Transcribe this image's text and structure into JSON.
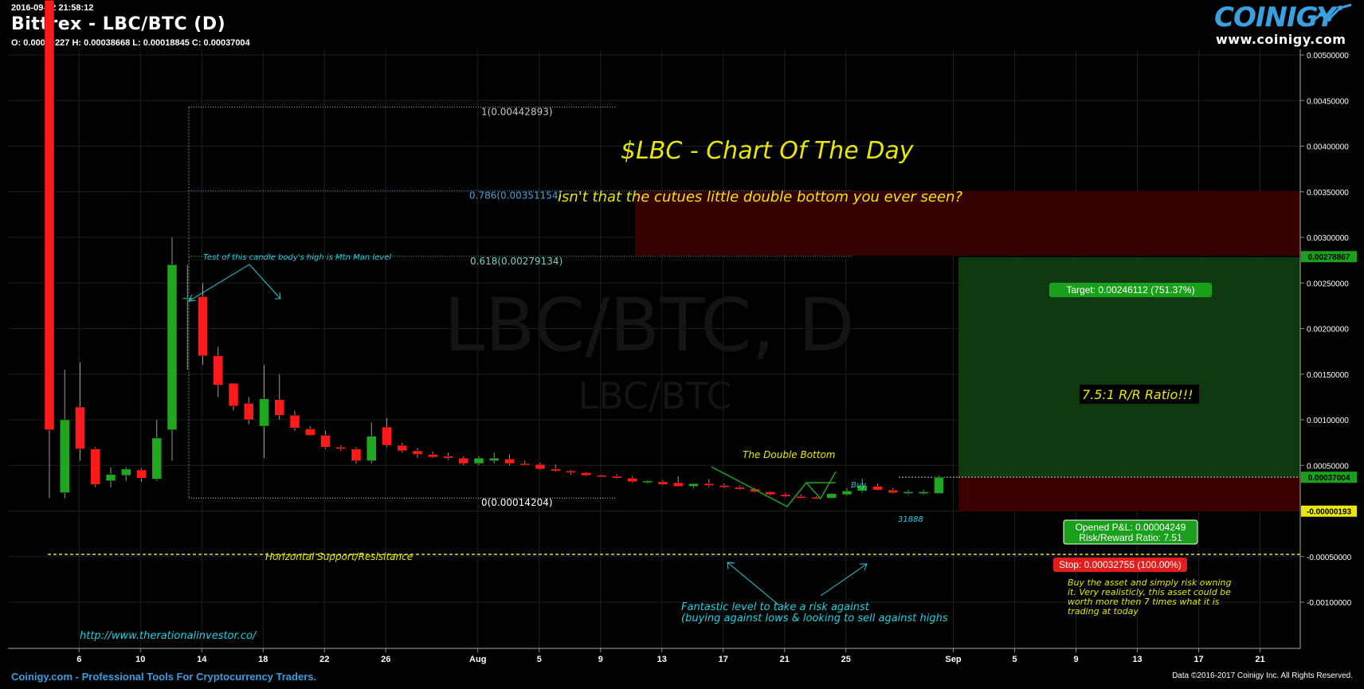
{
  "header": {
    "timestamp": "2016-09-02 21:58:12",
    "title": "Bittrex - LBC/BTC (D)",
    "ohlc": "O: 0.00019227 H: 0.00038668 L: 0.00018845 C: 0.00037004"
  },
  "logo": {
    "name": "COINIGY",
    "url": "www.coinigy.com"
  },
  "footer": {
    "left": "Coinigy.com - Professional Tools For Cryptocurrency Traders.",
    "right": "Data ©2016-2017 Coinigy Inc. All Rights Reserved."
  },
  "watermark": {
    "big": "LBC/BTC, D",
    "small": "LBC/BTC"
  },
  "annotations": {
    "headline": "$LBC - Chart Of The Day",
    "subheadline": "isn't that the cutues little double bottom you ever seen?",
    "mtn_man": "Test of this candle body's high is Mtn Man level",
    "horizontal": "Horizontal Support/Resisitance",
    "double_bottom": "The Double Bottom",
    "buy": "Buy",
    "count": "31888",
    "rr_ratio": "7.5:1 R/R Ratio!!!",
    "fantastic_1": "Fantastic level to take a risk against",
    "fantastic_2": "(buying against lows & looking to sell against highs",
    "url": "http://www.therationalinvestor.co/",
    "note_1": "Buy the asset and simply risk owning",
    "note_2": "it. Very realisticly, this asset could be",
    "note_3": "worth more then 7 times what it is",
    "note_4": "trading at today",
    "target": "Target: 0.00246112 (751.37%)",
    "stop": "Stop: 0.00032755 (100.00%)",
    "pnl": "Opened P&L: 0.00004249",
    "rr_label": "Risk/Reward Ratio: 7.51"
  },
  "fib_levels": [
    {
      "label": "1(0.00442893)",
      "price": 0.00442893,
      "color": "#c8c8c8"
    },
    {
      "label": "0.786(0.00351154)",
      "price": 0.00351154,
      "color": "#4aa0d8"
    },
    {
      "label": "0.618(0.00279134)",
      "price": 0.00279134,
      "color": "#7ad0c0"
    },
    {
      "label": "0(0.00014204)",
      "price": 0.00014204,
      "color": "#ffffff"
    }
  ],
  "price_labels": [
    {
      "text": "0.00278867",
      "price": 0.00278867,
      "color": "#1aa01a"
    },
    {
      "text": "0.00037004",
      "price": 0.00037004,
      "color": "#1aa01a"
    },
    {
      "text": "-0.00000193",
      "price": -1.93e-06,
      "color": "#e8e800"
    }
  ],
  "colors": {
    "up": "#1fa71f",
    "down": "#ff1a1a",
    "background": "#000000",
    "annotation": "#e8e800",
    "cyan": "#20d0e0"
  },
  "chart_data": {
    "type": "candlestick",
    "title": "Bittrex - LBC/BTC (D)",
    "y_axis": {
      "ylim": [
        -0.001,
        0.0056
      ],
      "ticks": [
        "0.00500000",
        "0.00450000",
        "0.00400000",
        "0.00350000",
        "0.00300000",
        "0.00250000",
        "0.00200000",
        "0.00150000",
        "0.00100000",
        "0.00050000",
        "-0.00050000",
        "-0.00100000"
      ]
    },
    "x_axis": {
      "labels": [
        "6",
        "10",
        "14",
        "18",
        "22",
        "26",
        "Aug",
        "5",
        "9",
        "13",
        "17",
        "21",
        "25",
        "Sep",
        "5",
        "9",
        "13",
        "17",
        "21"
      ],
      "label_days": [
        1,
        5,
        9,
        13,
        17,
        21,
        27,
        31,
        35,
        39,
        43,
        47,
        51,
        58,
        62,
        66,
        70,
        74,
        78
      ]
    },
    "candles": [
      {
        "d": 0,
        "o": 0.0056,
        "h": 0.0056,
        "l": 0.00014,
        "c": 0.00089
      },
      {
        "d": 1,
        "o": 0.0002,
        "h": 0.00155,
        "l": 0.00014,
        "c": 0.001
      },
      {
        "d": 2,
        "o": 0.00114,
        "h": 0.00163,
        "l": 0.00055,
        "c": 0.00068
      },
      {
        "d": 3,
        "o": 0.00068,
        "h": 0.0007,
        "l": 0.00026,
        "c": 0.00029
      },
      {
        "d": 4,
        "o": 0.00033,
        "h": 0.00048,
        "l": 0.00026,
        "c": 0.0004
      },
      {
        "d": 5,
        "o": 0.00039,
        "h": 0.00048,
        "l": 0.00033,
        "c": 0.00046
      },
      {
        "d": 6,
        "o": 0.00045,
        "h": 0.00047,
        "l": 0.00032,
        "c": 0.00036
      },
      {
        "d": 7,
        "o": 0.00035,
        "h": 0.001,
        "l": 0.00033,
        "c": 0.0008
      },
      {
        "d": 8,
        "o": 0.00089,
        "h": 0.003,
        "l": 0.00055,
        "c": 0.0027
      },
      {
        "d": 9,
        "o": 0.00234,
        "h": 0.0027,
        "l": 0.00155,
        "c": 0.00234
      },
      {
        "d": 10,
        "o": 0.00235,
        "h": 0.0025,
        "l": 0.0016,
        "c": 0.0017
      },
      {
        "d": 11,
        "o": 0.0017,
        "h": 0.0018,
        "l": 0.00125,
        "c": 0.00138
      },
      {
        "d": 12,
        "o": 0.0014,
        "h": 0.0014,
        "l": 0.0011,
        "c": 0.00115
      },
      {
        "d": 13,
        "o": 0.00118,
        "h": 0.00125,
        "l": 0.00095,
        "c": 0.001
      },
      {
        "d": 14,
        "o": 0.00093,
        "h": 0.0016,
        "l": 0.00058,
        "c": 0.00123
      },
      {
        "d": 15,
        "o": 0.00122,
        "h": 0.0015,
        "l": 0.001,
        "c": 0.00105
      },
      {
        "d": 16,
        "o": 0.00105,
        "h": 0.0011,
        "l": 0.00088,
        "c": 0.00091
      },
      {
        "d": 17,
        "o": 0.0009,
        "h": 0.00093,
        "l": 0.00082,
        "c": 0.00083
      },
      {
        "d": 18,
        "o": 0.00083,
        "h": 0.00088,
        "l": 0.00068,
        "c": 0.0007
      },
      {
        "d": 19,
        "o": 0.0007,
        "h": 0.00072,
        "l": 0.00066,
        "c": 0.00068
      },
      {
        "d": 20,
        "o": 0.00068,
        "h": 0.0007,
        "l": 0.00052,
        "c": 0.00055
      },
      {
        "d": 21,
        "o": 0.00055,
        "h": 0.00097,
        "l": 0.00052,
        "c": 0.00082
      },
      {
        "d": 22,
        "o": 0.00092,
        "h": 0.00102,
        "l": 0.0007,
        "c": 0.00072
      },
      {
        "d": 23,
        "o": 0.00072,
        "h": 0.00075,
        "l": 0.00064,
        "c": 0.00066
      },
      {
        "d": 24,
        "o": 0.00066,
        "h": 0.00069,
        "l": 0.00058,
        "c": 0.00062
      },
      {
        "d": 25,
        "o": 0.00062,
        "h": 0.00065,
        "l": 0.00058,
        "c": 0.00059
      },
      {
        "d": 26,
        "o": 0.0006,
        "h": 0.00064,
        "l": 0.00056,
        "c": 0.00058
      },
      {
        "d": 27,
        "o": 0.00058,
        "h": 0.0006,
        "l": 0.0005,
        "c": 0.00052
      },
      {
        "d": 28,
        "o": 0.00052,
        "h": 0.0006,
        "l": 0.0005,
        "c": 0.00058
      },
      {
        "d": 29,
        "o": 0.00055,
        "h": 0.00064,
        "l": 0.00052,
        "c": 0.00058
      },
      {
        "d": 30,
        "o": 0.00057,
        "h": 0.00062,
        "l": 0.0005,
        "c": 0.00052
      },
      {
        "d": 31,
        "o": 0.00052,
        "h": 0.00055,
        "l": 0.0005,
        "c": 0.00051
      },
      {
        "d": 32,
        "o": 0.00051,
        "h": 0.00053,
        "l": 0.00045,
        "c": 0.00046
      },
      {
        "d": 33,
        "o": 0.00046,
        "h": 0.00051,
        "l": 0.00043,
        "c": 0.00044
      },
      {
        "d": 34,
        "o": 0.00044,
        "h": 0.00045,
        "l": 0.0004,
        "c": 0.00042
      },
      {
        "d": 35,
        "o": 0.00042,
        "h": 0.00043,
        "l": 0.00038,
        "c": 0.00039
      },
      {
        "d": 36,
        "o": 0.00039,
        "h": 0.0004,
        "l": 0.00037,
        "c": 0.00038
      },
      {
        "d": 37,
        "o": 0.00038,
        "h": 0.0004,
        "l": 0.00035,
        "c": 0.00036
      },
      {
        "d": 38,
        "o": 0.00036,
        "h": 0.00038,
        "l": 0.00031,
        "c": 0.00032
      },
      {
        "d": 39,
        "o": 0.00032,
        "h": 0.00034,
        "l": 0.0003,
        "c": 0.00033
      },
      {
        "d": 40,
        "o": 0.00032,
        "h": 0.00034,
        "l": 0.00028,
        "c": 0.00029
      },
      {
        "d": 41,
        "o": 0.00031,
        "h": 0.00038,
        "l": 0.00027,
        "c": 0.00027
      },
      {
        "d": 42,
        "o": 0.00027,
        "h": 0.0003,
        "l": 0.00025,
        "c": 0.0003
      },
      {
        "d": 43,
        "o": 0.0003,
        "h": 0.00035,
        "l": 0.00026,
        "c": 0.00028
      },
      {
        "d": 44,
        "o": 0.00028,
        "h": 0.0003,
        "l": 0.00025,
        "c": 0.00026
      },
      {
        "d": 45,
        "o": 0.00026,
        "h": 0.00028,
        "l": 0.00023,
        "c": 0.00024
      },
      {
        "d": 46,
        "o": 0.00024,
        "h": 0.00025,
        "l": 0.0002,
        "c": 0.00021
      },
      {
        "d": 47,
        "o": 0.00021,
        "h": 0.00022,
        "l": 0.00017,
        "c": 0.00018
      },
      {
        "d": 48,
        "o": 0.00018,
        "h": 0.0002,
        "l": 0.00015,
        "c": 0.00016
      },
      {
        "d": 49,
        "o": 0.00016,
        "h": 0.00018,
        "l": 0.00014,
        "c": 0.00015
      },
      {
        "d": 50,
        "o": 0.00015,
        "h": 0.00016,
        "l": 0.00014,
        "c": 0.00014
      },
      {
        "d": 51,
        "o": 0.00014,
        "h": 0.0002,
        "l": 0.00014,
        "c": 0.00019
      },
      {
        "d": 52,
        "o": 0.00018,
        "h": 0.00025,
        "l": 0.00017,
        "c": 0.00022
      },
      {
        "d": 53,
        "o": 0.00022,
        "h": 0.00035,
        "l": 0.0002,
        "c": 0.00028
      },
      {
        "d": 54,
        "o": 0.00027,
        "h": 0.0003,
        "l": 0.00022,
        "c": 0.00023
      },
      {
        "d": 55,
        "o": 0.00023,
        "h": 0.00025,
        "l": 0.00019,
        "c": 0.0002
      },
      {
        "d": 56,
        "o": 0.0002,
        "h": 0.00023,
        "l": 0.00018,
        "c": 0.00021
      },
      {
        "d": 57,
        "o": 0.00019,
        "h": 0.00023,
        "l": 0.00018,
        "c": 0.00021
      },
      {
        "d": 58,
        "o": 0.00019227,
        "h": 0.00038668,
        "l": 0.00018845,
        "c": 0.00037004
      }
    ]
  }
}
